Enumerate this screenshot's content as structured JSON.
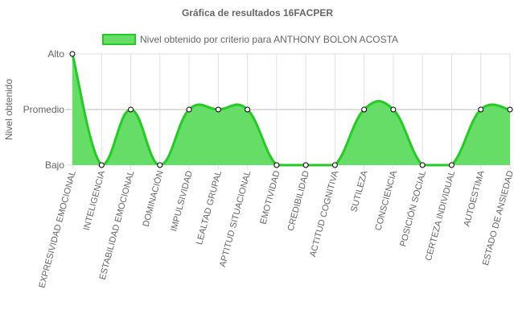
{
  "chart_data": {
    "type": "area",
    "title": "Gráfica de resultados 16FACPER",
    "ylabel": "Nivel obtenido",
    "xlabel": "",
    "y_levels": [
      "Bajo",
      "Promedio",
      "Alto"
    ],
    "ylim": [
      0,
      2
    ],
    "grid": true,
    "legend_position": "top",
    "categories": [
      "EXPRESIVIDAD EMOCIONAL",
      "INTELIGENCIA",
      "ESTABILIDAD EMOCIONAL",
      "DOMINACIÓN",
      "IMPULSIVIDAD",
      "LEALTAD GRUPAL",
      "APTITUD SITUACIONAL",
      "EMOTIVIDAD",
      "CREDIBILIDAD",
      "ACTITUD COGNITIVA",
      "SUTILEZA",
      "CONSCIENCIA",
      "POSICIÓN SOCIAL",
      "CERTEZA INDIVIDUAL",
      "AUTOESTIMA",
      "ESTADO DE ANSIEDAD"
    ],
    "series": [
      {
        "name": "Nivel obtenido por criterio para ANTHONY BOLON ACOSTA",
        "values": [
          2,
          0,
          1,
          0,
          1,
          1,
          1,
          0,
          0,
          0,
          1,
          1,
          0,
          0,
          1,
          1
        ],
        "color": "#22cc22",
        "fill": "#66dd66"
      }
    ]
  }
}
